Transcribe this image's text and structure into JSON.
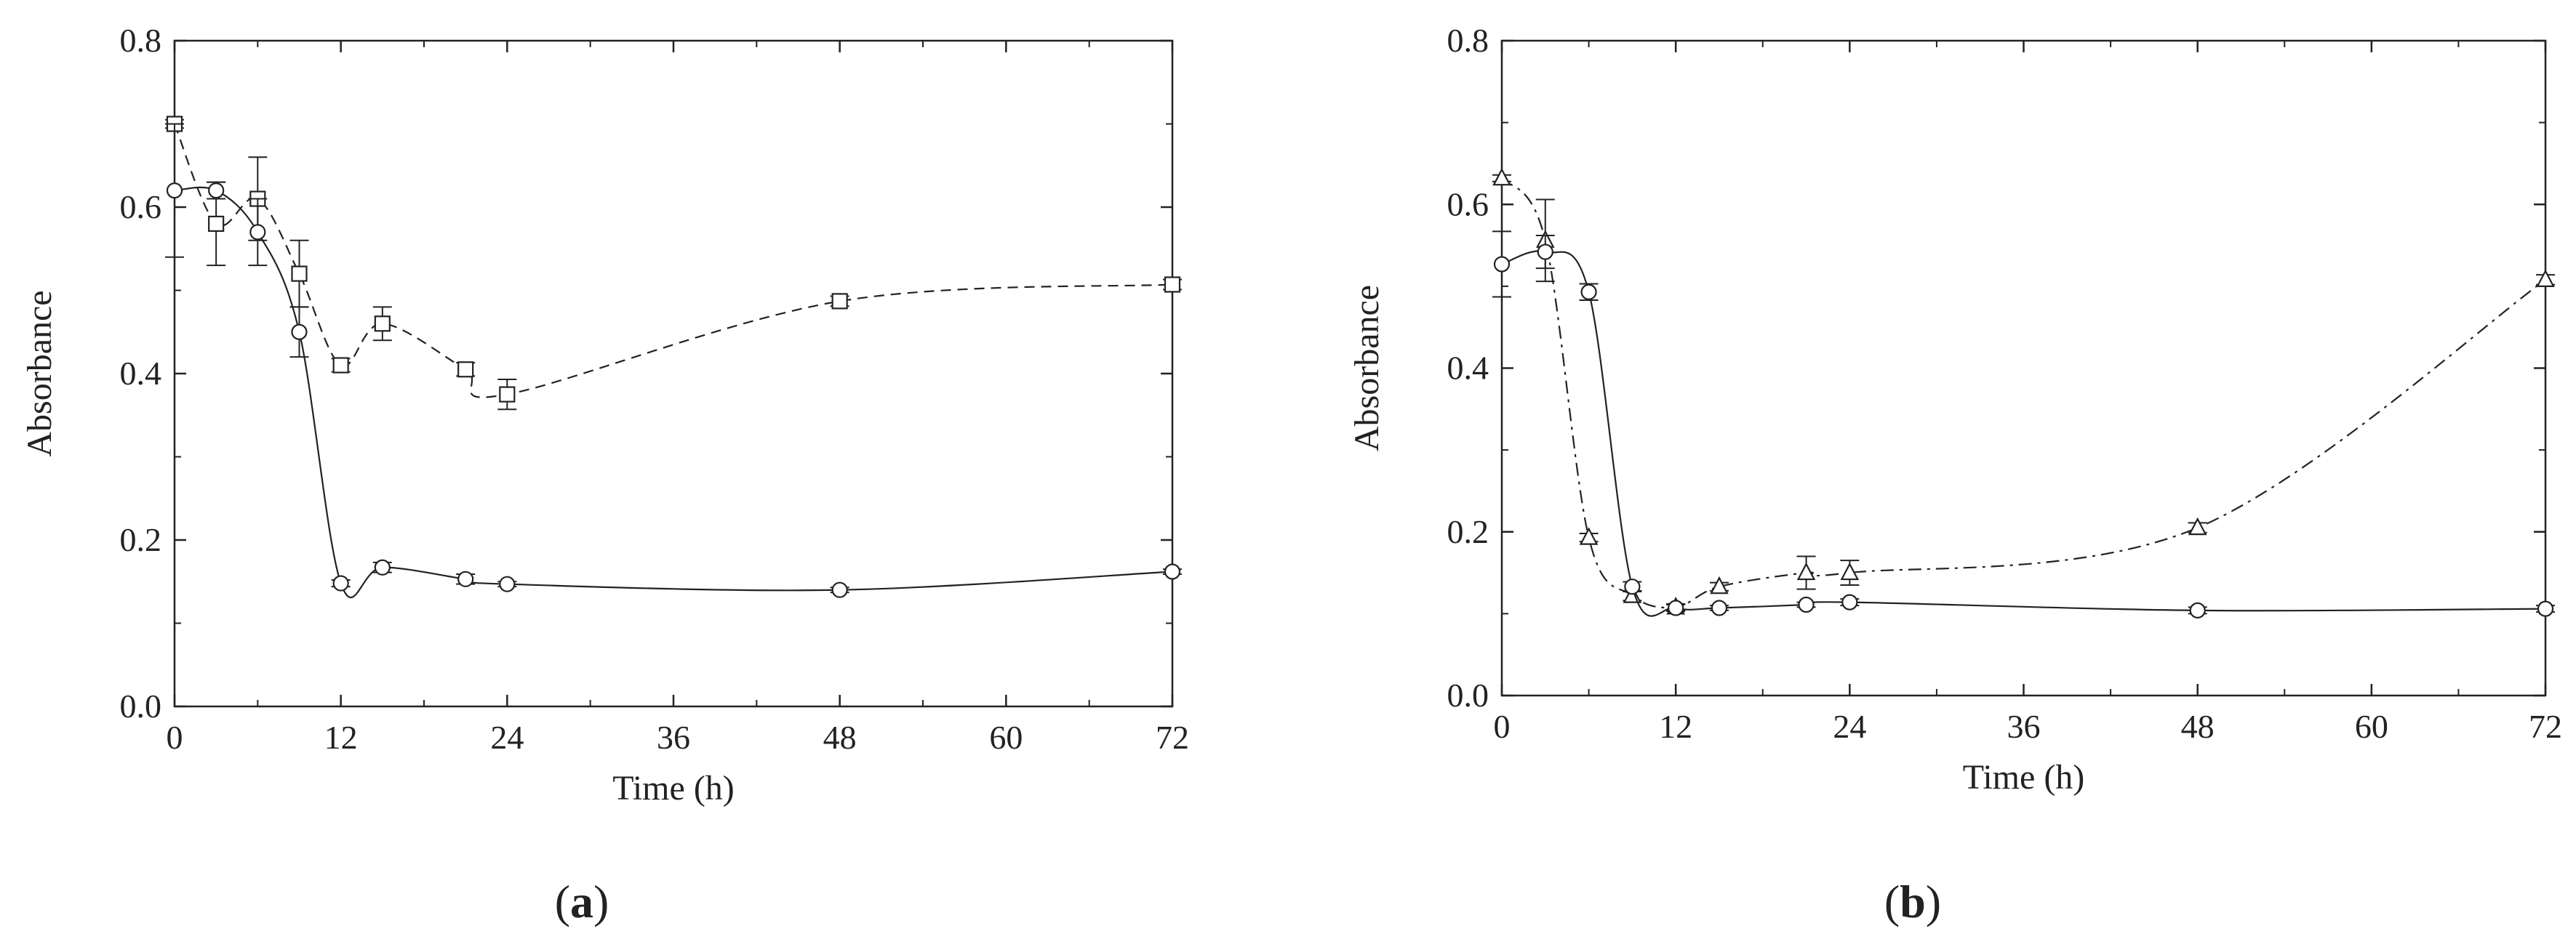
{
  "chart_data": [
    {
      "type": "line",
      "panel_label": "a",
      "xlabel": "Time (h)",
      "ylabel": "Absorbance",
      "xlim": [
        0,
        72
      ],
      "ylim": [
        0,
        0.8
      ],
      "xticks": [
        "0",
        "12",
        "24",
        "36",
        "48",
        "60",
        "72"
      ],
      "yticks": [
        "0.0",
        "0.2",
        "0.4",
        "0.6",
        "0.8"
      ],
      "series": [
        {
          "marker": "square",
          "line_style": "dashed",
          "x": [
            0,
            3,
            6,
            9,
            12,
            15,
            21,
            24,
            48,
            72
          ],
          "y": [
            0.7,
            0.58,
            0.61,
            0.52,
            0.41,
            0.46,
            0.405,
            0.375,
            0.487,
            0.507
          ],
          "error": [
            0.005,
            0.05,
            0.05,
            0.04,
            0.008,
            0.02,
            0.008,
            0.018,
            0.006,
            0.006
          ]
        },
        {
          "marker": "circle",
          "line_style": "solid",
          "x": [
            0,
            3,
            6,
            9,
            12,
            15,
            21,
            24,
            48,
            72
          ],
          "y": [
            0.62,
            0.62,
            0.57,
            0.45,
            0.148,
            0.167,
            0.153,
            0.147,
            0.14,
            0.162
          ],
          "error": [
            0.08,
            0.01,
            0.04,
            0.03,
            0.004,
            0.006,
            0.006,
            0.003,
            0.003,
            0.003
          ]
        }
      ]
    },
    {
      "type": "line",
      "panel_label": "b",
      "xlabel": "Time (h)",
      "ylabel": "Absorbance",
      "xlim": [
        0,
        72
      ],
      "ylim": [
        0,
        0.8
      ],
      "xticks": [
        "0",
        "12",
        "24",
        "36",
        "48",
        "60",
        "72"
      ],
      "yticks": [
        "0.0",
        "0.2",
        "0.4",
        "0.6",
        "0.8"
      ],
      "series": [
        {
          "marker": "triangle",
          "line_style": "dash-dot",
          "x": [
            0,
            3,
            6,
            9,
            12,
            15,
            21,
            24,
            48,
            72
          ],
          "y": [
            0.632,
            0.556,
            0.193,
            0.122,
            0.108,
            0.133,
            0.15,
            0.15,
            0.205,
            0.508
          ],
          "error": [
            0.004,
            0.05,
            0.005,
            0.006,
            0.004,
            0.005,
            0.02,
            0.015,
            0.006,
            0.006
          ]
        },
        {
          "marker": "circle",
          "line_style": "solid",
          "x": [
            0,
            3,
            6,
            9,
            12,
            15,
            21,
            24,
            48,
            72
          ],
          "y": [
            0.527,
            0.542,
            0.493,
            0.133,
            0.107,
            0.107,
            0.111,
            0.114,
            0.104,
            0.106
          ],
          "error": [
            0.04,
            0.02,
            0.01,
            0.006,
            0.004,
            0.003,
            0.003,
            0.004,
            0.004,
            0.004
          ]
        }
      ]
    }
  ]
}
